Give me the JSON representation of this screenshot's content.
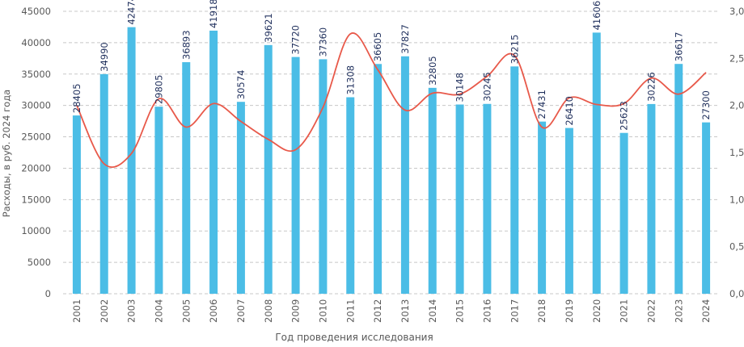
{
  "chart_data": {
    "type": "bar",
    "xlabel": "Год проведения исследования",
    "ylabel": "Расходы, в руб. 2024 года",
    "ylim": [
      0,
      45000
    ],
    "y2lim": [
      0,
      3.0
    ],
    "yticks": [
      "0",
      "5000",
      "10000",
      "15000",
      "20000",
      "25000",
      "30000",
      "35000",
      "40000",
      "45000"
    ],
    "y2ticks": [
      "0,0",
      "0,5",
      "1,0",
      "1,5",
      "2,0",
      "2,5",
      "3,0"
    ],
    "grid": true,
    "categories": [
      "2001",
      "2002",
      "2003",
      "2004",
      "2005",
      "2006",
      "2007",
      "2008",
      "2009",
      "2010",
      "2011",
      "2012",
      "2013",
      "2014",
      "2015",
      "2016",
      "2017",
      "2018",
      "2019",
      "2020",
      "2021",
      "2022",
      "2023",
      "2024"
    ],
    "series": [
      {
        "type": "bar",
        "axis": "left",
        "color": "#4bbde6",
        "values": [
          28405,
          34990,
          42474,
          29805,
          36893,
          41918,
          30574,
          39621,
          37720,
          37360,
          31308,
          36605,
          37827,
          32805,
          30148,
          30245,
          36215,
          27431,
          26410,
          41606,
          25623,
          30226,
          36617,
          27300
        ]
      },
      {
        "type": "line",
        "axis": "right",
        "color": "#e8594a",
        "smooth": true,
        "values": [
          2.0,
          1.38,
          1.49,
          2.07,
          1.77,
          2.02,
          1.83,
          1.64,
          1.53,
          1.98,
          2.76,
          2.38,
          1.95,
          2.13,
          2.12,
          2.31,
          2.53,
          1.77,
          2.08,
          2.01,
          2.02,
          2.29,
          2.12,
          2.35
        ]
      }
    ]
  }
}
